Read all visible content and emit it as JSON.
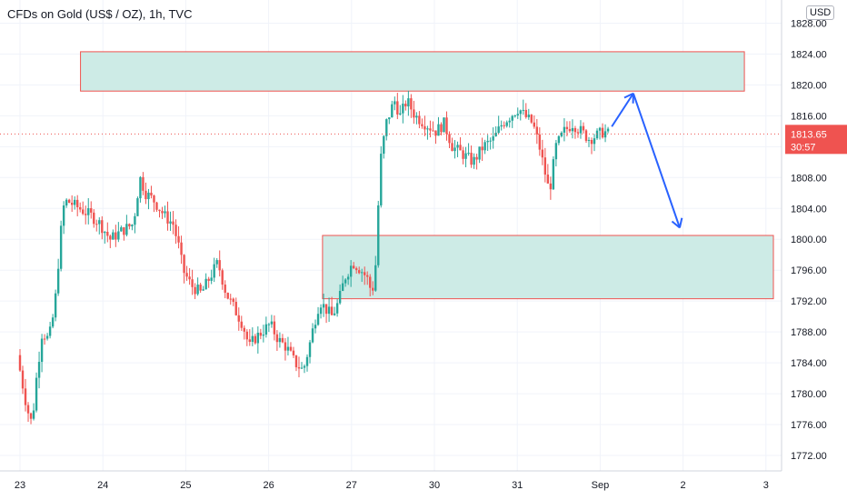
{
  "chart_data": {
    "type": "candlestick",
    "title": "CFDs on Gold (US$ / OZ), 1h, TVC",
    "currency": "USD",
    "y_ticks": [
      1772,
      1776,
      1780,
      1784,
      1788,
      1792,
      1796,
      1800,
      1804,
      1808,
      1812,
      1816,
      1820,
      1824,
      1828
    ],
    "y_tick_labels": [
      "1772.00",
      "1776.00",
      "1780.00",
      "1784.00",
      "1788.00",
      "1792.00",
      "1796.00",
      "1800.00",
      "1804.00",
      "1808.00",
      "1812.00",
      "1816.00",
      "1820.00",
      "1824.00",
      "1828.00"
    ],
    "x_ticks": [
      {
        "label": "23",
        "pos": 0
      },
      {
        "label": "24",
        "pos": 1
      },
      {
        "label": "25",
        "pos": 2
      },
      {
        "label": "26",
        "pos": 3
      },
      {
        "label": "27",
        "pos": 4
      },
      {
        "label": "30",
        "pos": 5
      },
      {
        "label": "31",
        "pos": 6
      },
      {
        "label": "Sep",
        "pos": 7
      },
      {
        "label": "2",
        "pos": 8
      },
      {
        "label": "3",
        "pos": 9
      }
    ],
    "ylim": [
      1770,
      1831
    ],
    "current_price": "1813.65",
    "current_price_value": 1813.65,
    "countdown": "30:57",
    "zones": [
      {
        "from_pos": 0.73,
        "to_pos": 8.74,
        "low": 1819.2,
        "high": 1824.3
      },
      {
        "from_pos": 3.65,
        "to_pos": 9.09,
        "low": 1792.3,
        "high": 1800.5
      }
    ],
    "projection": [
      {
        "pos": 7.14,
        "price": 1814.6
      },
      {
        "pos": 7.4,
        "price": 1818.9
      },
      {
        "pos": 7.96,
        "price": 1801.5
      }
    ],
    "colors": {
      "up": "#26a69a",
      "down": "#ef5350",
      "zone_fill": "#cdebe6",
      "zone_border": "#ef5350",
      "arrow": "#2962ff",
      "price_line": "#ef5350"
    },
    "grid": true,
    "price_path": [
      [
        0.0,
        1785
      ],
      [
        0.05,
        1782
      ],
      [
        0.12,
        1778
      ],
      [
        0.18,
        1776
      ],
      [
        0.22,
        1781
      ],
      [
        0.3,
        1788
      ],
      [
        0.38,
        1787
      ],
      [
        0.45,
        1791
      ],
      [
        0.55,
        1804
      ],
      [
        0.6,
        1805
      ],
      [
        0.75,
        1804
      ],
      [
        0.9,
        1803
      ],
      [
        1.0,
        1802
      ],
      [
        1.12,
        1800
      ],
      [
        1.25,
        1801
      ],
      [
        1.4,
        1802
      ],
      [
        1.48,
        1808
      ],
      [
        1.55,
        1806
      ],
      [
        1.65,
        1805
      ],
      [
        1.78,
        1803
      ],
      [
        1.88,
        1802
      ],
      [
        1.95,
        1799
      ],
      [
        2.0,
        1796
      ],
      [
        2.1,
        1794
      ],
      [
        2.22,
        1793
      ],
      [
        2.32,
        1795
      ],
      [
        2.42,
        1797
      ],
      [
        2.52,
        1793
      ],
      [
        2.62,
        1791
      ],
      [
        2.72,
        1789
      ],
      [
        2.8,
        1786
      ],
      [
        2.85,
        1787
      ],
      [
        2.95,
        1788
      ],
      [
        3.05,
        1789
      ],
      [
        3.15,
        1787
      ],
      [
        3.25,
        1786
      ],
      [
        3.35,
        1784
      ],
      [
        3.45,
        1783
      ],
      [
        3.52,
        1786
      ],
      [
        3.58,
        1789
      ],
      [
        3.65,
        1792
      ],
      [
        3.72,
        1791
      ],
      [
        3.8,
        1790
      ],
      [
        3.88,
        1792
      ],
      [
        3.95,
        1795
      ],
      [
        4.05,
        1797
      ],
      [
        4.15,
        1796
      ],
      [
        4.22,
        1795
      ],
      [
        4.28,
        1793
      ],
      [
        4.32,
        1796
      ],
      [
        4.38,
        1810
      ],
      [
        4.45,
        1815
      ],
      [
        4.55,
        1818
      ],
      [
        4.62,
        1816
      ],
      [
        4.7,
        1818
      ],
      [
        4.8,
        1816
      ],
      [
        4.92,
        1815
      ],
      [
        5.05,
        1814
      ],
      [
        5.15,
        1815
      ],
      [
        5.25,
        1812
      ],
      [
        5.38,
        1811
      ],
      [
        5.5,
        1810
      ],
      [
        5.62,
        1812
      ],
      [
        5.75,
        1813
      ],
      [
        5.85,
        1815
      ],
      [
        5.95,
        1816
      ],
      [
        6.05,
        1817
      ],
      [
        6.12,
        1816
      ],
      [
        6.22,
        1815
      ],
      [
        6.3,
        1812
      ],
      [
        6.38,
        1808
      ],
      [
        6.42,
        1806
      ],
      [
        6.5,
        1812
      ],
      [
        6.6,
        1814
      ],
      [
        6.7,
        1815
      ],
      [
        6.8,
        1814
      ],
      [
        6.9,
        1813
      ],
      [
        7.0,
        1813.5
      ],
      [
        7.08,
        1814
      ],
      [
        7.12,
        1813.65
      ]
    ]
  }
}
